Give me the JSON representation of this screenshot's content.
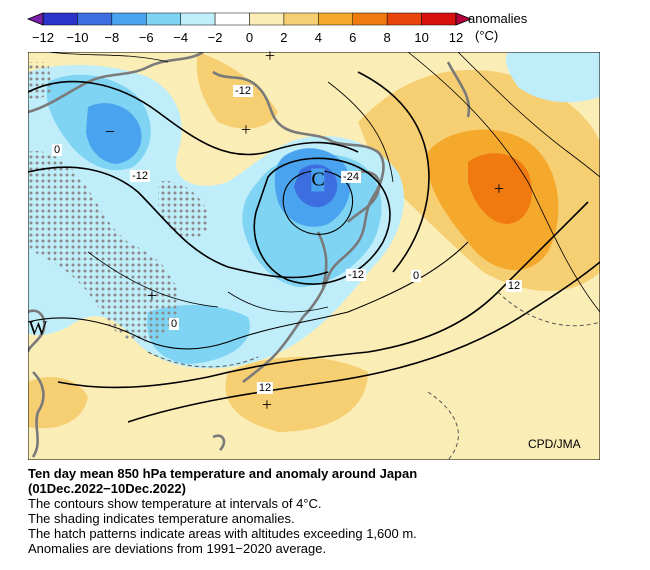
{
  "colorbar": {
    "title": "anomalies",
    "unit": "(°C)",
    "ticks": [
      "−12",
      "−10",
      "−8",
      "−6",
      "−4",
      "−2",
      "0",
      "2",
      "4",
      "6",
      "8",
      "10",
      "12"
    ],
    "colors": [
      "#2b33c9",
      "#3c6ee0",
      "#4aa3ef",
      "#7fd4f4",
      "#bfeefa",
      "#ffffff",
      "#fbedb6",
      "#f7cf73",
      "#f4a92d",
      "#f07a10",
      "#e9450b",
      "#d8100e"
    ]
  },
  "map_labels": {
    "contour_labels": [
      "-12",
      "0",
      "-12",
      "-24",
      "-12",
      "0",
      "12",
      "0",
      "12"
    ],
    "centers": [
      "C",
      "W"
    ],
    "pressure_marks": [
      "+",
      "+",
      "+",
      "+",
      "+",
      "−"
    ]
  },
  "credit": "CPD/JMA",
  "caption": {
    "title_line1": "Ten day mean 850 hPa temperature and anomaly around Japan",
    "title_line2": "(01Dec.2022−10Dec.2022)",
    "lines": [
      "The contours show temperature at intervals of 4°C.",
      "The shading indicates temperature anomalies.",
      "The hatch patterns indicate areas with altitudes exceeding 1,600 m.",
      "Anomalies are deviations from 1991−2020 average."
    ]
  }
}
